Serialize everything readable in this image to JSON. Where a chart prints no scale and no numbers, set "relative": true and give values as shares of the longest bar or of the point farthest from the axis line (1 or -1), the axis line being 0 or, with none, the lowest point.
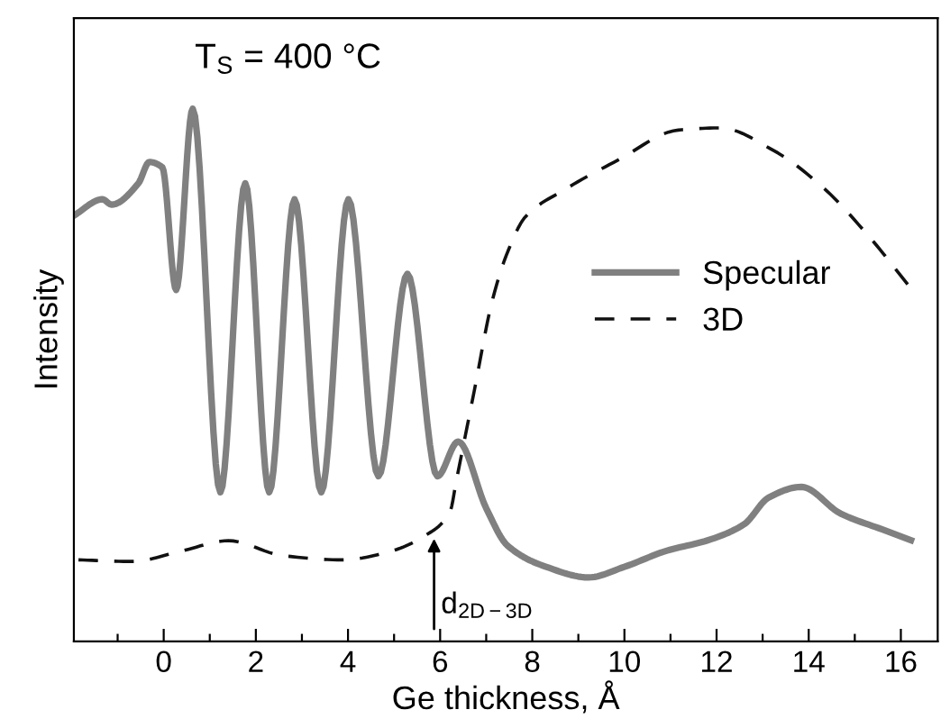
{
  "chart_data": {
    "type": "line",
    "relative": true,
    "xlabel": "Ge thickness, Å",
    "ylabel": "Intensity",
    "xlim": [
      -1.95,
      16.8
    ],
    "xticks": [
      {
        "value": -1,
        "label": null
      },
      0,
      {
        "value": 1,
        "label": null
      },
      2,
      {
        "value": 3,
        "label": null
      },
      4,
      {
        "value": 5,
        "label": null
      },
      6,
      {
        "value": 7,
        "label": null
      },
      8,
      {
        "value": 9,
        "label": null
      },
      10,
      {
        "value": 11,
        "label": null
      },
      12,
      {
        "value": 13,
        "label": null
      },
      14,
      {
        "value": 15,
        "label": null
      },
      16
    ],
    "legend": "right",
    "grid": false,
    "annotations": [
      "T$_{S}$ = 400 °C",
      "d$_{2D−3D}$"
    ],
    "series": [
      {
        "name": "Specular",
        "color": "#808080",
        "line_style": "solid",
        "x": [
          -1.94,
          -1.33,
          -1.13,
          -0.55,
          -0.31,
          -0.03,
          0.27,
          0.63,
          1.23,
          1.77,
          2.29,
          2.84,
          3.42,
          4.01,
          4.66,
          5.29,
          5.94,
          6.39,
          7.0,
          7.46,
          8.3,
          9.22,
          10.0,
          10.91,
          11.82,
          12.6,
          13.13,
          13.84,
          14.69,
          15.6,
          16.22
        ],
        "values": [
          0.8,
          0.83,
          0.82,
          0.86,
          0.9,
          0.89,
          0.66,
          1.0,
          0.28,
          0.86,
          0.28,
          0.83,
          0.28,
          0.83,
          0.31,
          0.69,
          0.31,
          0.375,
          0.25,
          0.18,
          0.14,
          0.12,
          0.14,
          0.17,
          0.19,
          0.22,
          0.27,
          0.29,
          0.24,
          0.21,
          0.19
        ]
      },
      {
        "name": "3D",
        "color": "#111111",
        "line_style": "dashed",
        "x": [
          -1.85,
          -0.68,
          0.36,
          1.41,
          2.58,
          3.88,
          4.92,
          5.7,
          6.22,
          6.35,
          6.74,
          7.13,
          7.46,
          7.85,
          8.7,
          9.87,
          11.17,
          12.08,
          13.25,
          14.3,
          15.34,
          16.18
        ],
        "values": [
          0.153,
          0.15,
          0.169,
          0.189,
          0.161,
          0.153,
          0.169,
          0.2,
          0.245,
          0.301,
          0.47,
          0.639,
          0.73,
          0.797,
          0.848,
          0.904,
          0.96,
          0.964,
          0.921,
          0.853,
          0.757,
          0.667
        ]
      }
    ]
  }
}
